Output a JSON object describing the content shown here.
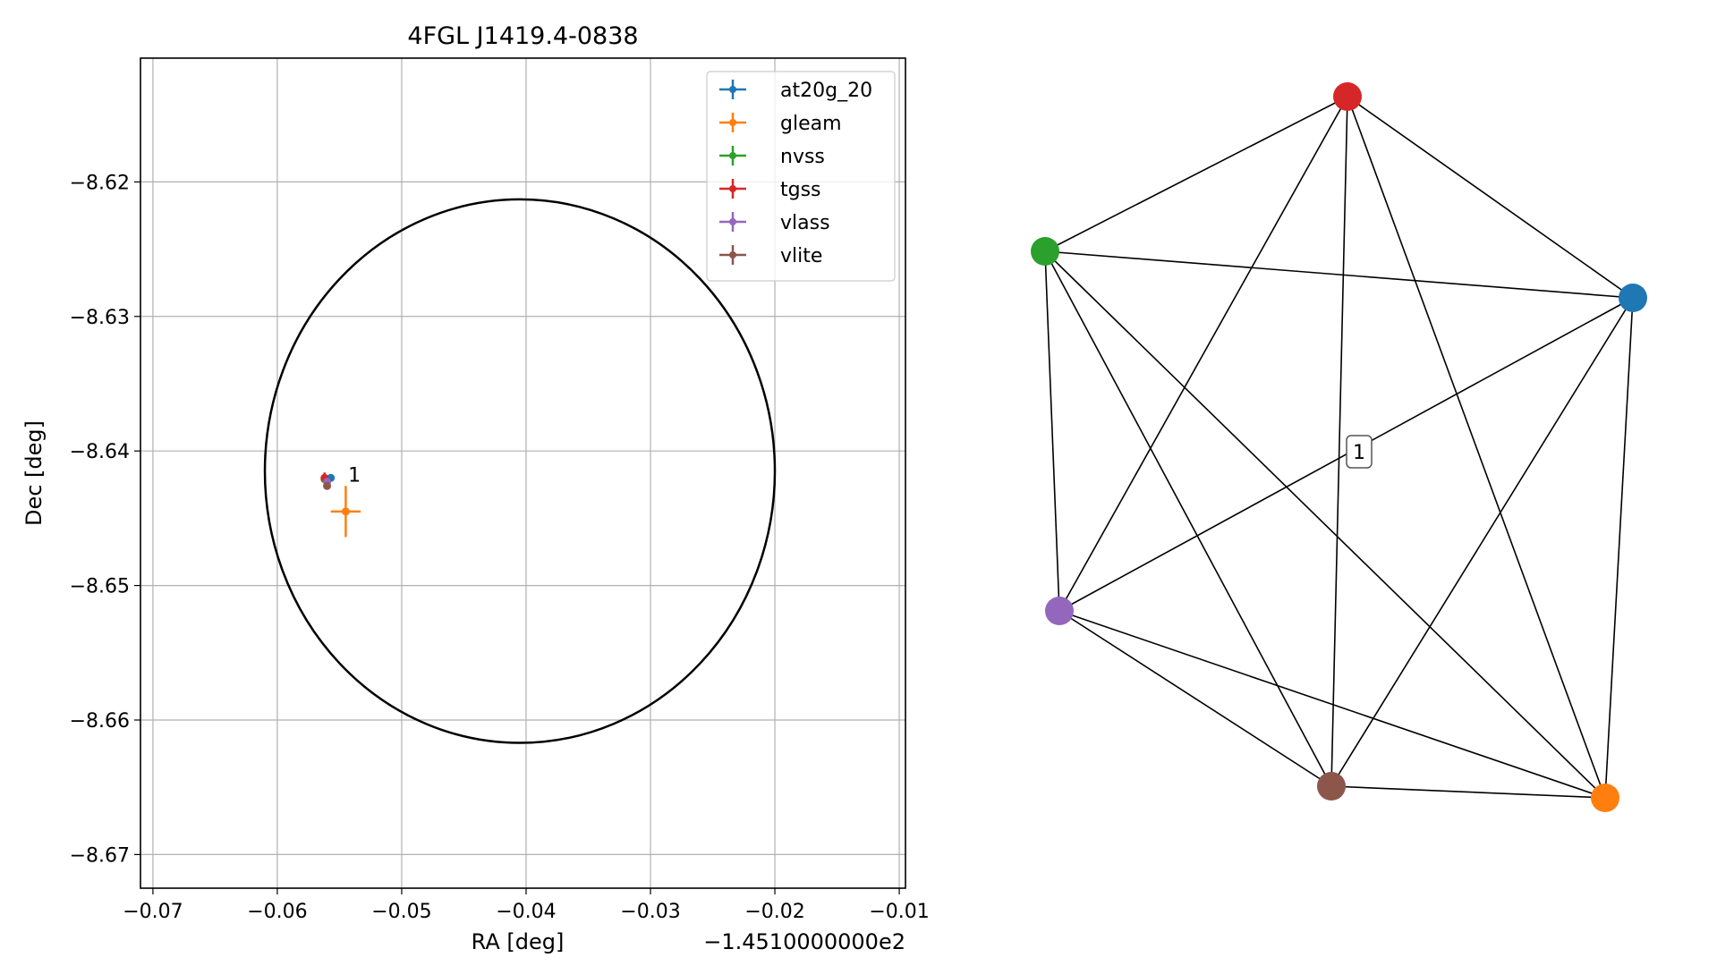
{
  "chart_data": [
    {
      "type": "scatter",
      "title": "4FGL J1419.4-0838",
      "xlabel": "RA [deg]",
      "ylabel": "Dec [deg]",
      "x_offset_label": "−1.4510000000e2",
      "xlim": [
        -0.071,
        -0.0095
      ],
      "ylim": [
        -8.6725,
        -8.6108
      ],
      "xticks": [
        -0.07,
        -0.06,
        -0.05,
        -0.04,
        -0.03,
        -0.02,
        -0.01
      ],
      "xtick_labels": [
        "−0.07",
        "−0.06",
        "−0.05",
        "−0.04",
        "−0.03",
        "−0.02",
        "−0.01"
      ],
      "yticks": [
        -8.62,
        -8.63,
        -8.64,
        -8.65,
        -8.66,
        -8.67
      ],
      "ytick_labels": [
        "−8.62",
        "−8.63",
        "−8.64",
        "−8.65",
        "−8.66",
        "−8.67"
      ],
      "grid": true,
      "legend_position": "top-right",
      "ellipse": {
        "center": [
          -0.0405,
          -8.6415
        ],
        "semi_x": 0.0205,
        "semi_y": 0.0202,
        "color": "#000000"
      },
      "annotations": [
        {
          "text": "1",
          "x": -0.0543,
          "y": -8.6418
        }
      ],
      "series": [
        {
          "name": "at20g_20",
          "color": "#1f77b4",
          "x": -0.0557,
          "y": -8.642,
          "xerr": 0.0002,
          "yerr": 0.0002
        },
        {
          "name": "gleam",
          "color": "#ff7f0e",
          "x": -0.0545,
          "y": -8.6445,
          "xerr": 0.0012,
          "yerr": 0.0019
        },
        {
          "name": "nvss",
          "color": "#2ca02c",
          "x": -0.0562,
          "y": -8.6421,
          "xerr": 0.0003,
          "yerr": 0.0003
        },
        {
          "name": "tgss",
          "color": "#d62728",
          "x": -0.0562,
          "y": -8.642,
          "xerr": 0.0003,
          "yerr": 0.0004
        },
        {
          "name": "vlass",
          "color": "#9467bd",
          "x": -0.056,
          "y": -8.6423,
          "xerr": 0.0001,
          "yerr": 0.0001
        },
        {
          "name": "vlite",
          "color": "#8c564b",
          "x": -0.056,
          "y": -8.6426,
          "xerr": 0.0002,
          "yerr": 0.0002
        }
      ]
    },
    {
      "type": "network",
      "edge_label": "1",
      "nodes": [
        {
          "id": "at20g_20",
          "color": "#1f77b4"
        },
        {
          "id": "gleam",
          "color": "#ff7f0e"
        },
        {
          "id": "nvss",
          "color": "#2ca02c"
        },
        {
          "id": "tgss",
          "color": "#d62728"
        },
        {
          "id": "vlass",
          "color": "#9467bd"
        },
        {
          "id": "vlite",
          "color": "#8c564b"
        }
      ],
      "edges": "complete"
    }
  ]
}
